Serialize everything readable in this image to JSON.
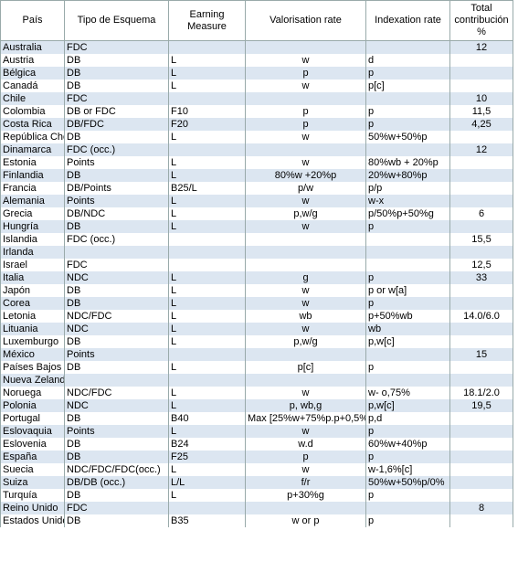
{
  "table": {
    "header": [
      "País",
      "Tipo de Esquema",
      "Earning Measure",
      "Valorisation rate",
      "Indexation rate",
      "Total contribución %"
    ],
    "rows": [
      [
        "Australia",
        "FDC",
        null,
        null,
        null,
        "12"
      ],
      [
        "Austria",
        "DB",
        "L",
        "w",
        "d",
        null
      ],
      [
        "Bélgica",
        "DB",
        "L",
        "p",
        "p",
        null
      ],
      [
        "Canadá",
        "DB",
        "L",
        "w",
        "p[c]",
        null
      ],
      [
        "Chile",
        "FDC",
        null,
        null,
        null,
        "10"
      ],
      [
        "Colombia",
        "DB or FDC",
        "F10",
        "p",
        "p",
        "11,5"
      ],
      [
        "Costa Rica",
        "DB/FDC",
        "F20",
        "p",
        "p",
        "4,25"
      ],
      [
        "República Che",
        "DB",
        "L",
        "w",
        "50%w+50%p",
        null
      ],
      [
        "Dinamarca",
        "FDC (occ.)",
        null,
        null,
        null,
        "12"
      ],
      [
        "Estonia",
        "Points",
        "L",
        "w",
        "80%wb + 20%p",
        null
      ],
      [
        "Finlandia",
        "DB",
        "L",
        "80%w +20%p",
        "20%w+80%p",
        null
      ],
      [
        "Francia",
        "DB/Points",
        "B25/L",
        "p/w",
        "p/p",
        null
      ],
      [
        "Alemania",
        "Points",
        "L",
        "w",
        "w-x",
        null
      ],
      [
        "Grecia",
        "DB/NDC",
        "L",
        "p,w/g",
        "p/50%p+50%g",
        "6"
      ],
      [
        "Hungría",
        "DB",
        "L",
        "w",
        "p",
        null
      ],
      [
        "Islandia",
        "FDC (occ.)",
        null,
        null,
        null,
        "15,5"
      ],
      [
        "Irlanda",
        null,
        null,
        null,
        null,
        null
      ],
      [
        "Israel",
        "FDC",
        null,
        null,
        null,
        "12,5"
      ],
      [
        "Italia",
        "NDC",
        "L",
        "g",
        "p",
        "33"
      ],
      [
        "Japón",
        "DB",
        "L",
        "w",
        "p or w[a]",
        null
      ],
      [
        "Corea",
        "DB",
        "L",
        "w",
        "p",
        null
      ],
      [
        "Letonia",
        "NDC/FDC",
        "L",
        "wb",
        "p+50%wb",
        "14.0/6.0"
      ],
      [
        "Lituania",
        "NDC",
        "L",
        "w",
        "wb",
        null
      ],
      [
        "Luxemburgo",
        "DB",
        "L",
        "p,w/g",
        "p,w[c]",
        null
      ],
      [
        "México",
        "Points",
        null,
        null,
        null,
        "15"
      ],
      [
        "Países Bajos",
        "DB",
        "L",
        "p[c]",
        "p",
        null
      ],
      [
        "Nueva Zelanda",
        null,
        null,
        null,
        null,
        null
      ],
      [
        "Noruega",
        "NDC/FDC",
        "L",
        "w",
        "w- o,75%",
        "18.1/2.0"
      ],
      [
        "Polonia",
        "NDC",
        "L",
        "p, wb,g",
        "p,w[c]",
        "19,5"
      ],
      [
        "Portugal",
        "DB",
        "B40",
        "Max [25%w+75%p.p+0,5%]",
        "p,d",
        null
      ],
      [
        "Eslovaquia",
        "Points",
        "L",
        "w",
        "p",
        null
      ],
      [
        "Eslovenia",
        "DB",
        "B24",
        "w.d",
        "60%w+40%p",
        null
      ],
      [
        "España",
        "DB",
        "F25",
        "p",
        "p",
        null
      ],
      [
        "Suecia",
        "NDC/FDC/FDC(occ.)",
        "L",
        "w",
        "w-1,6%[c]",
        null
      ],
      [
        "Suiza",
        "DB/DB (occ.)",
        "L/L",
        "f/r",
        "50%w+50%p/0%",
        null
      ],
      [
        "Turquía",
        "DB",
        "L",
        "p+30%g",
        "p",
        null
      ],
      [
        "Reino Unido",
        "FDC",
        null,
        null,
        null,
        "8"
      ],
      [
        "Estados Unido",
        "DB",
        "B35",
        "w or p",
        "p",
        null
      ]
    ]
  }
}
